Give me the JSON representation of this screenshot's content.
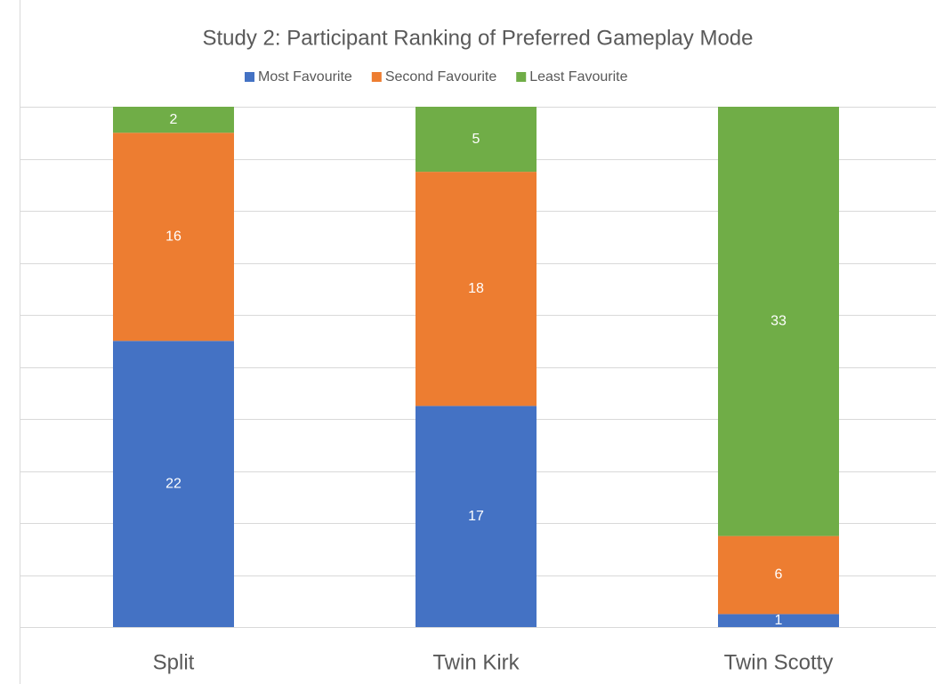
{
  "chart_data": {
    "type": "stacked_bar",
    "title": "Study 2: Participant Ranking of Preferred Gameplay Mode",
    "categories": [
      "Split",
      "Twin Kirk",
      "Twin Scotty"
    ],
    "series": [
      {
        "name": "Most Favourite",
        "color": "#4472c4",
        "values": [
          22,
          17,
          1
        ]
      },
      {
        "name": "Second Favourite",
        "color": "#ed7d31",
        "values": [
          16,
          18,
          6
        ]
      },
      {
        "name": "Least Favourite",
        "color": "#70ad47",
        "values": [
          2,
          5,
          33
        ]
      }
    ],
    "ylim": [
      0,
      40
    ],
    "yticks": [
      0,
      4,
      8,
      12,
      16,
      20,
      24,
      28,
      32,
      36,
      40
    ],
    "grid": true,
    "legend": "top"
  }
}
